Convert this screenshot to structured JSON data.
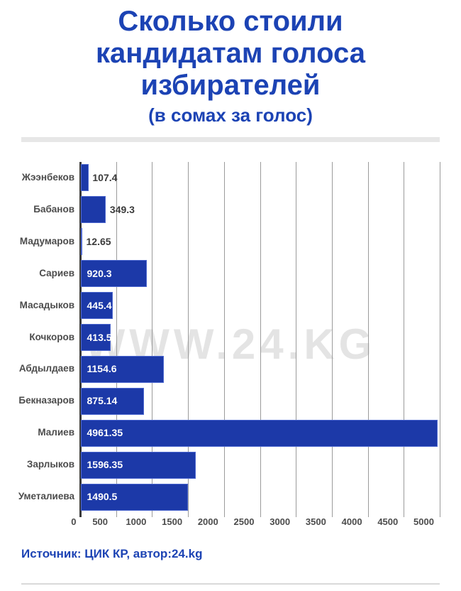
{
  "header": {
    "title_lines": [
      "Сколько стоили",
      "кандидатам голоса",
      "избирателей"
    ],
    "subtitle": "(в сомах за голос)"
  },
  "chart_data": {
    "type": "bar",
    "orientation": "horizontal",
    "title": "Сколько стоили кандидатам голоса избирателей",
    "subtitle": "(в сомах за голос)",
    "categories": [
      "Жээнбеков",
      "Бабанов",
      "Мадумаров",
      "Сариев",
      "Масадыков",
      "Кочкоров",
      "Абдылдаев",
      "Бекназаров",
      "Малиев",
      "Зарлыков",
      "Уметалиева"
    ],
    "values": [
      107.4,
      349.3,
      12.65,
      920.3,
      445.4,
      413.5,
      1154.6,
      875.14,
      4961.35,
      1596.35,
      1490.5
    ],
    "value_labels": [
      "107.4",
      "349.3",
      "12.65",
      "920.3",
      "445.4",
      "413.5",
      "1154.6",
      "875.14",
      "4961.35",
      "1596.35",
      "1490.5"
    ],
    "xlabel": "",
    "ylabel": "",
    "xlim": [
      0,
      5000
    ],
    "xticks": [
      0,
      500,
      1000,
      1500,
      2000,
      2500,
      3000,
      3500,
      4000,
      4500,
      5000
    ],
    "grid": "vertical-only",
    "legend": "none"
  },
  "watermark": "WWW.24.KG",
  "footer": {
    "source": "Источник: ЦИК КР, автор:24.kg"
  },
  "colors": {
    "title_blue": "#1c43b4",
    "bar_blue": "#1c39a8",
    "label_gray": "#4c4c4c",
    "value_dark": "#3b3b3b",
    "grid_gray": "#9b9b9b",
    "axis_dark": "#3a3a3a",
    "watermark_gray": "#e4e4e4",
    "divider_gray": "#e7e7e7",
    "footer_line_gray": "#d9d9d9"
  }
}
